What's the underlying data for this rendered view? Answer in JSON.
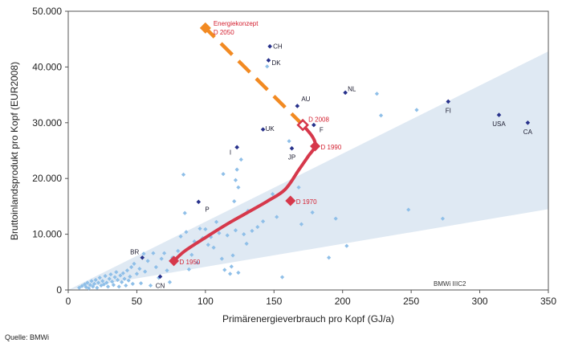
{
  "chart_data": {
    "type": "scatter",
    "title": "",
    "xlabel": "Primärenergieverbrauch pro Kopf (GJ/a)",
    "ylabel": "Bruttoinlandsprodukt pro Kopf (EUR2008)",
    "xlim": [
      0,
      350
    ],
    "ylim": [
      0,
      50000
    ],
    "xticks": [
      0,
      50,
      100,
      150,
      200,
      250,
      300,
      350
    ],
    "yticks": [
      0,
      10000,
      20000,
      30000,
      40000,
      50000
    ],
    "xtick_labels": [
      "0",
      "50",
      "100",
      "150",
      "200",
      "250",
      "300",
      "350"
    ],
    "ytick_labels": [
      "0",
      "10.000",
      "20.000",
      "30.000",
      "40.000",
      "50.000"
    ],
    "source_note": "Quelle: BMWi",
    "corner_note": "BMWi IIIC2",
    "band_colors": {
      "fill": "#dfe9f3",
      "edge": "#b9cfe4"
    },
    "band_upper": [
      [
        0,
        0
      ],
      [
        350,
        42800
      ]
    ],
    "band_lower": [
      [
        0,
        0
      ],
      [
        350,
        14500
      ]
    ],
    "named_countries": [
      {
        "label": "CH",
        "x": 147,
        "y": 43700
      },
      {
        "label": "DK",
        "x": 146,
        "y": 41200
      },
      {
        "label": "NL",
        "x": 202,
        "y": 35400
      },
      {
        "label": "AU",
        "x": 167,
        "y": 33000
      },
      {
        "label": "FI",
        "x": 277,
        "y": 33800
      },
      {
        "label": "USA",
        "x": 314,
        "y": 31400
      },
      {
        "label": "CA",
        "x": 335,
        "y": 30000
      },
      {
        "label": "UK",
        "x": 142,
        "y": 28800
      },
      {
        "label": "F",
        "x": 179,
        "y": 29600
      },
      {
        "label": "JP",
        "x": 163,
        "y": 25400
      },
      {
        "label": "I",
        "x": 123,
        "y": 25600
      },
      {
        "label": "P",
        "x": 95,
        "y": 15800
      },
      {
        "label": "BR",
        "x": 54,
        "y": 5800
      },
      {
        "label": "CN",
        "x": 67,
        "y": 2400
      }
    ],
    "other_countries": [
      [
        8,
        400
      ],
      [
        10,
        700
      ],
      [
        12,
        1000
      ],
      [
        13,
        500
      ],
      [
        14,
        1300
      ],
      [
        15,
        300
      ],
      [
        16,
        900
      ],
      [
        17,
        1600
      ],
      [
        18,
        600
      ],
      [
        19,
        1100
      ],
      [
        20,
        1800
      ],
      [
        21,
        400
      ],
      [
        22,
        1300
      ],
      [
        23,
        2200
      ],
      [
        24,
        800
      ],
      [
        25,
        1600
      ],
      [
        26,
        1000
      ],
      [
        27,
        2500
      ],
      [
        28,
        1300
      ],
      [
        29,
        600
      ],
      [
        30,
        2000
      ],
      [
        31,
        2800
      ],
      [
        32,
        1500
      ],
      [
        33,
        900
      ],
      [
        34,
        2300
      ],
      [
        35,
        3200
      ],
      [
        36,
        1800
      ],
      [
        37,
        600
      ],
      [
        38,
        2600
      ],
      [
        39,
        1400
      ],
      [
        40,
        3000
      ],
      [
        41,
        2000
      ],
      [
        42,
        800
      ],
      [
        43,
        3500
      ],
      [
        44,
        1700
      ],
      [
        45,
        2400
      ],
      [
        46,
        4100
      ],
      [
        47,
        1100
      ],
      [
        48,
        4700
      ],
      [
        50,
        2900
      ],
      [
        52,
        3800
      ],
      [
        53,
        1200
      ],
      [
        55,
        6500
      ],
      [
        56,
        3300
      ],
      [
        58,
        5200
      ],
      [
        60,
        800
      ],
      [
        62,
        6600
      ],
      [
        64,
        4100
      ],
      [
        66,
        2200
      ],
      [
        68,
        5600
      ],
      [
        70,
        6600
      ],
      [
        72,
        3500
      ],
      [
        74,
        1400
      ],
      [
        76,
        5800
      ],
      [
        80,
        7000
      ],
      [
        82,
        9600
      ],
      [
        84,
        20700
      ],
      [
        85,
        13800
      ],
      [
        86,
        10400
      ],
      [
        88,
        3700
      ],
      [
        90,
        6300
      ],
      [
        92,
        8700
      ],
      [
        94,
        4900
      ],
      [
        96,
        11000
      ],
      [
        98,
        9300
      ],
      [
        100,
        10900
      ],
      [
        102,
        8100
      ],
      [
        104,
        9500
      ],
      [
        106,
        7600
      ],
      [
        108,
        12200
      ],
      [
        110,
        10200
      ],
      [
        112,
        5600
      ],
      [
        113,
        20800
      ],
      [
        114,
        3600
      ],
      [
        116,
        9800
      ],
      [
        118,
        2900
      ],
      [
        119,
        4200
      ],
      [
        120,
        6200
      ],
      [
        121,
        15900
      ],
      [
        122,
        19700
      ],
      [
        122,
        10700
      ],
      [
        123,
        21600
      ],
      [
        124,
        3100
      ],
      [
        124,
        18400
      ],
      [
        126,
        23400
      ],
      [
        128,
        10000
      ],
      [
        130,
        8300
      ],
      [
        131,
        14200
      ],
      [
        134,
        10600
      ],
      [
        138,
        11300
      ],
      [
        142,
        12300
      ],
      [
        145,
        40100
      ],
      [
        149,
        17200
      ],
      [
        152,
        13100
      ],
      [
        156,
        2300
      ],
      [
        161,
        26700
      ],
      [
        168,
        18400
      ],
      [
        170,
        11800
      ],
      [
        178,
        13900
      ],
      [
        190,
        5800
      ],
      [
        195,
        12800
      ],
      [
        203,
        7900
      ],
      [
        225,
        35200
      ],
      [
        228,
        31300
      ],
      [
        248,
        14400
      ],
      [
        254,
        32300
      ],
      [
        273,
        12800
      ]
    ],
    "historical_path": {
      "color": "#d6384b",
      "points": [
        [
          77,
          5200
        ],
        [
          85,
          7000
        ],
        [
          100,
          9400
        ],
        [
          115,
          11700
        ],
        [
          130,
          13800
        ],
        [
          145,
          15900
        ],
        [
          158,
          18000
        ],
        [
          168,
          21500
        ],
        [
          175,
          24000
        ],
        [
          180,
          25800
        ],
        [
          178,
          27500
        ],
        [
          171,
          29600
        ]
      ],
      "markers": [
        {
          "label": "D 1950",
          "x": 77,
          "y": 5200
        },
        {
          "label": "D 1970",
          "x": 162,
          "y": 16000
        },
        {
          "label": "D 1990",
          "x": 180,
          "y": 25800
        },
        {
          "label": "D 2008",
          "x": 171,
          "y": 29600
        }
      ]
    },
    "target_path": {
      "color": "#f28a22",
      "points": [
        [
          171,
          29600
        ],
        [
          100,
          47000
        ]
      ],
      "marker": {
        "x": 100,
        "y": 47000
      },
      "label_line1": "Energiekonzept",
      "label_line2": "D 2050"
    },
    "colors": {
      "named": "#27318b",
      "other": "#8fbfe8"
    }
  }
}
